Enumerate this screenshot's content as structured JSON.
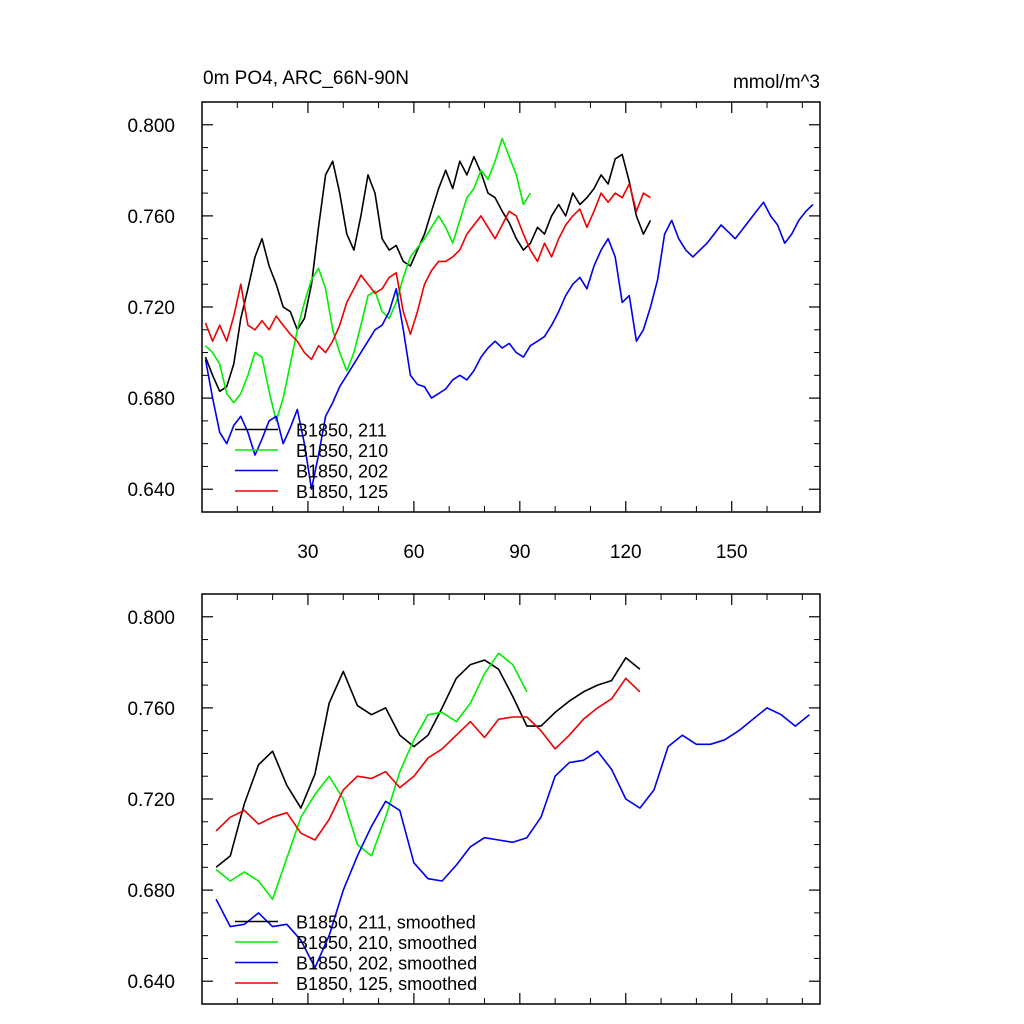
{
  "chart_data": [
    {
      "type": "line",
      "title_left": "0m PO4, ARC_66N-90N",
      "title_right": "mmol/m^3",
      "xlim": [
        0,
        175
      ],
      "ylim": [
        0.63,
        0.81
      ],
      "xticks": [
        30,
        60,
        90,
        120,
        150
      ],
      "xtick_labels": [
        "30",
        "60",
        "90",
        "120",
        "150"
      ],
      "yticks": [
        0.64,
        0.68,
        0.72,
        0.76,
        0.8
      ],
      "ytick_labels": [
        "0.640",
        "0.680",
        "0.720",
        "0.760",
        "0.800"
      ],
      "legend_position": "bottom-left",
      "series": [
        {
          "name": "B1850, 211",
          "color": "#000000",
          "x": [
            1,
            3,
            5,
            7,
            9,
            11,
            13,
            15,
            17,
            19,
            21,
            23,
            25,
            27,
            29,
            31,
            33,
            35,
            37,
            39,
            41,
            43,
            45,
            47,
            49,
            51,
            53,
            55,
            57,
            59,
            61,
            63,
            65,
            67,
            69,
            71,
            73,
            75,
            77,
            79,
            81,
            83,
            85,
            87,
            89,
            91,
            93,
            95,
            97,
            99,
            101,
            103,
            105,
            107,
            109,
            111,
            113,
            115,
            117,
            119,
            121,
            123,
            125,
            127
          ],
          "y": [
            0.698,
            0.69,
            0.683,
            0.685,
            0.695,
            0.715,
            0.728,
            0.742,
            0.75,
            0.738,
            0.73,
            0.72,
            0.718,
            0.71,
            0.715,
            0.73,
            0.755,
            0.778,
            0.784,
            0.77,
            0.752,
            0.745,
            0.76,
            0.778,
            0.77,
            0.75,
            0.745,
            0.747,
            0.74,
            0.738,
            0.745,
            0.752,
            0.762,
            0.772,
            0.78,
            0.772,
            0.784,
            0.778,
            0.786,
            0.779,
            0.77,
            0.768,
            0.762,
            0.757,
            0.75,
            0.745,
            0.748,
            0.755,
            0.752,
            0.76,
            0.765,
            0.76,
            0.77,
            0.765,
            0.768,
            0.772,
            0.778,
            0.774,
            0.785,
            0.787,
            0.775,
            0.76,
            0.752,
            0.758
          ]
        },
        {
          "name": "B1850, 210",
          "color": "#00ee00",
          "x": [
            1,
            3,
            5,
            7,
            9,
            11,
            13,
            15,
            17,
            19,
            21,
            23,
            25,
            27,
            29,
            31,
            33,
            35,
            37,
            39,
            41,
            43,
            45,
            47,
            49,
            51,
            53,
            55,
            57,
            59,
            61,
            63,
            65,
            67,
            69,
            71,
            73,
            75,
            77,
            79,
            81,
            83,
            85,
            87,
            89,
            91,
            93
          ],
          "y": [
            0.703,
            0.7,
            0.695,
            0.682,
            0.678,
            0.682,
            0.69,
            0.7,
            0.698,
            0.683,
            0.67,
            0.68,
            0.695,
            0.71,
            0.722,
            0.732,
            0.737,
            0.728,
            0.71,
            0.7,
            0.692,
            0.7,
            0.712,
            0.725,
            0.727,
            0.718,
            0.715,
            0.722,
            0.733,
            0.742,
            0.746,
            0.75,
            0.755,
            0.76,
            0.755,
            0.748,
            0.758,
            0.768,
            0.772,
            0.78,
            0.776,
            0.784,
            0.794,
            0.786,
            0.778,
            0.765,
            0.77
          ]
        },
        {
          "name": "B1850, 202",
          "color": "#0000ee",
          "x": [
            1,
            3,
            5,
            7,
            9,
            11,
            13,
            15,
            17,
            19,
            21,
            23,
            25,
            27,
            29,
            31,
            33,
            35,
            37,
            39,
            41,
            43,
            45,
            47,
            49,
            51,
            53,
            55,
            57,
            59,
            61,
            63,
            65,
            67,
            69,
            71,
            73,
            75,
            77,
            79,
            81,
            83,
            85,
            87,
            89,
            91,
            93,
            95,
            97,
            99,
            101,
            103,
            105,
            107,
            109,
            111,
            113,
            115,
            117,
            119,
            121,
            123,
            125,
            127,
            129,
            131,
            133,
            135,
            137,
            139,
            141,
            143,
            145,
            147,
            149,
            151,
            153,
            155,
            157,
            159,
            161,
            163,
            165,
            167,
            169,
            171,
            173
          ],
          "y": [
            0.697,
            0.68,
            0.665,
            0.66,
            0.668,
            0.672,
            0.665,
            0.655,
            0.662,
            0.67,
            0.672,
            0.66,
            0.667,
            0.675,
            0.66,
            0.64,
            0.655,
            0.672,
            0.678,
            0.685,
            0.69,
            0.695,
            0.7,
            0.705,
            0.71,
            0.712,
            0.718,
            0.728,
            0.71,
            0.69,
            0.686,
            0.685,
            0.68,
            0.682,
            0.684,
            0.688,
            0.69,
            0.688,
            0.692,
            0.698,
            0.702,
            0.705,
            0.702,
            0.704,
            0.7,
            0.698,
            0.703,
            0.705,
            0.707,
            0.712,
            0.718,
            0.725,
            0.73,
            0.733,
            0.728,
            0.738,
            0.745,
            0.75,
            0.742,
            0.722,
            0.725,
            0.705,
            0.71,
            0.72,
            0.732,
            0.752,
            0.758,
            0.75,
            0.745,
            0.742,
            0.745,
            0.748,
            0.752,
            0.756,
            0.753,
            0.75,
            0.754,
            0.758,
            0.762,
            0.766,
            0.76,
            0.756,
            0.748,
            0.752,
            0.758,
            0.762,
            0.765
          ]
        },
        {
          "name": "B1850, 125",
          "color": "#ee0000",
          "x": [
            1,
            3,
            5,
            7,
            9,
            11,
            13,
            15,
            17,
            19,
            21,
            23,
            25,
            27,
            29,
            31,
            33,
            35,
            37,
            39,
            41,
            43,
            45,
            47,
            49,
            51,
            53,
            55,
            57,
            59,
            61,
            63,
            65,
            67,
            69,
            71,
            73,
            75,
            77,
            79,
            81,
            83,
            85,
            87,
            89,
            91,
            93,
            95,
            97,
            99,
            101,
            103,
            105,
            107,
            109,
            111,
            113,
            115,
            117,
            119,
            121,
            123,
            125,
            127
          ],
          "y": [
            0.713,
            0.705,
            0.712,
            0.705,
            0.716,
            0.73,
            0.712,
            0.71,
            0.714,
            0.71,
            0.716,
            0.712,
            0.708,
            0.705,
            0.7,
            0.697,
            0.703,
            0.7,
            0.705,
            0.712,
            0.722,
            0.728,
            0.734,
            0.73,
            0.726,
            0.728,
            0.733,
            0.735,
            0.718,
            0.708,
            0.718,
            0.73,
            0.736,
            0.74,
            0.74,
            0.742,
            0.745,
            0.752,
            0.756,
            0.76,
            0.755,
            0.75,
            0.756,
            0.762,
            0.76,
            0.752,
            0.745,
            0.74,
            0.748,
            0.742,
            0.75,
            0.756,
            0.76,
            0.763,
            0.755,
            0.762,
            0.77,
            0.766,
            0.77,
            0.768,
            0.774,
            0.762,
            0.77,
            0.768
          ]
        }
      ]
    },
    {
      "type": "line",
      "title_left": "",
      "title_right": "",
      "xlim": [
        0,
        175
      ],
      "ylim": [
        0.63,
        0.81
      ],
      "xticks": [
        30,
        60,
        90,
        120,
        150
      ],
      "xtick_labels": [],
      "yticks": [
        0.64,
        0.68,
        0.72,
        0.76,
        0.8
      ],
      "ytick_labels": [
        "0.640",
        "0.680",
        "0.720",
        "0.760",
        "0.800"
      ],
      "legend_position": "bottom-left",
      "series": [
        {
          "name": "B1850, 211, smoothed",
          "color": "#000000",
          "x": [
            4,
            8,
            12,
            16,
            20,
            24,
            28,
            32,
            36,
            40,
            44,
            48,
            52,
            56,
            60,
            64,
            68,
            72,
            76,
            80,
            84,
            88,
            92,
            96,
            100,
            104,
            108,
            112,
            116,
            120,
            124
          ],
          "y": [
            0.69,
            0.695,
            0.718,
            0.735,
            0.741,
            0.726,
            0.716,
            0.731,
            0.762,
            0.776,
            0.761,
            0.757,
            0.76,
            0.748,
            0.743,
            0.748,
            0.76,
            0.773,
            0.779,
            0.781,
            0.777,
            0.765,
            0.752,
            0.752,
            0.758,
            0.763,
            0.767,
            0.77,
            0.772,
            0.782,
            0.777
          ]
        },
        {
          "name": "B1850, 210, smoothed",
          "color": "#00ee00",
          "x": [
            4,
            8,
            12,
            16,
            20,
            24,
            28,
            32,
            36,
            40,
            44,
            48,
            52,
            56,
            60,
            64,
            68,
            72,
            76,
            80,
            84,
            88,
            92
          ],
          "y": [
            0.689,
            0.684,
            0.688,
            0.684,
            0.676,
            0.694,
            0.712,
            0.722,
            0.73,
            0.72,
            0.7,
            0.695,
            0.712,
            0.732,
            0.746,
            0.757,
            0.758,
            0.754,
            0.762,
            0.775,
            0.784,
            0.779,
            0.767
          ]
        },
        {
          "name": "B1850, 202, smoothed",
          "color": "#0000ee",
          "x": [
            4,
            8,
            12,
            16,
            20,
            24,
            28,
            32,
            36,
            40,
            44,
            48,
            52,
            56,
            60,
            64,
            68,
            72,
            76,
            80,
            84,
            88,
            92,
            96,
            100,
            104,
            108,
            112,
            116,
            120,
            124,
            128,
            132,
            136,
            140,
            144,
            148,
            152,
            156,
            160,
            164,
            168,
            172
          ],
          "y": [
            0.676,
            0.664,
            0.665,
            0.67,
            0.664,
            0.665,
            0.658,
            0.646,
            0.66,
            0.68,
            0.695,
            0.708,
            0.719,
            0.715,
            0.692,
            0.685,
            0.684,
            0.691,
            0.699,
            0.703,
            0.702,
            0.701,
            0.703,
            0.712,
            0.73,
            0.736,
            0.737,
            0.741,
            0.733,
            0.72,
            0.716,
            0.724,
            0.743,
            0.748,
            0.744,
            0.744,
            0.746,
            0.75,
            0.755,
            0.76,
            0.757,
            0.752,
            0.757
          ]
        },
        {
          "name": "B1850, 125, smoothed",
          "color": "#ee0000",
          "x": [
            4,
            8,
            12,
            16,
            20,
            24,
            28,
            32,
            36,
            40,
            44,
            48,
            52,
            56,
            60,
            64,
            68,
            72,
            76,
            80,
            84,
            88,
            92,
            96,
            100,
            104,
            108,
            112,
            116,
            120,
            124
          ],
          "y": [
            0.706,
            0.712,
            0.715,
            0.709,
            0.712,
            0.714,
            0.705,
            0.702,
            0.711,
            0.724,
            0.73,
            0.729,
            0.732,
            0.725,
            0.73,
            0.738,
            0.742,
            0.748,
            0.754,
            0.747,
            0.755,
            0.756,
            0.756,
            0.75,
            0.742,
            0.748,
            0.755,
            0.76,
            0.764,
            0.773,
            0.767
          ]
        }
      ]
    }
  ]
}
